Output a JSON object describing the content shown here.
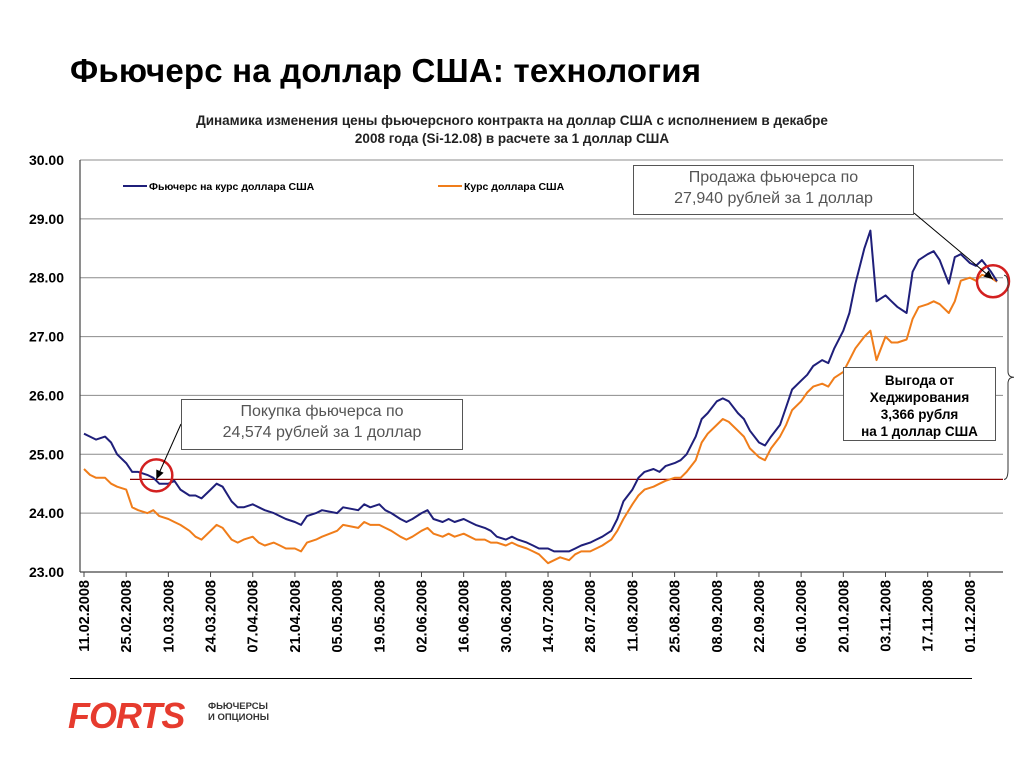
{
  "slide": {
    "title": "Фьючерс на доллар США: технология"
  },
  "chart_data": {
    "type": "line",
    "title": "Динамика изменения цены фьючерсного контракта на доллар США  с исполнением в декабре 2008 года (Si-12.08) в расчете за 1 доллар США",
    "title_lines": [
      "Динамика изменения цены фьючерсного контракта на доллар США  с исполнением в декабре",
      "2008 года (Si-12.08) в расчете за 1 доллар США"
    ],
    "xlabel": "",
    "ylabel": "",
    "ylim": [
      23.0,
      30.0
    ],
    "y_ticks": [
      "23.00",
      "24.00",
      "25.00",
      "26.00",
      "27.00",
      "28.00",
      "29.00",
      "30.00"
    ],
    "x_ticks": [
      "11.02.2008",
      "25.02.2008",
      "10.03.2008",
      "24.03.2008",
      "07.04.2008",
      "21.04.2008",
      "05.05.2008",
      "19.05.2008",
      "02.06.2008",
      "16.06.2008",
      "30.06.2008",
      "14.07.2008",
      "28.07.2008",
      "11.08.2008",
      "25.08.2008",
      "08.09.2008",
      "22.09.2008",
      "06.10.2008",
      "20.10.2008",
      "03.11.2008",
      "17.11.2008",
      "01.12.2008"
    ],
    "grid": true,
    "legend": "top",
    "reference_line": {
      "value": 24.574,
      "color": "#8b0000"
    },
    "series": [
      {
        "name": "Фьючерс на курс доллара США",
        "color": "#1f1f7a",
        "points": [
          [
            "11.02.2008",
            25.35
          ],
          [
            "13.02.2008",
            25.3
          ],
          [
            "15.02.2008",
            25.25
          ],
          [
            "18.02.2008",
            25.3
          ],
          [
            "20.02.2008",
            25.2
          ],
          [
            "22.02.2008",
            25.0
          ],
          [
            "25.02.2008",
            24.85
          ],
          [
            "27.02.2008",
            24.7
          ],
          [
            "29.02.2008",
            24.7
          ],
          [
            "03.03.2008",
            24.65
          ],
          [
            "05.03.2008",
            24.6
          ],
          [
            "07.03.2008",
            24.5
          ],
          [
            "10.03.2008",
            24.5
          ],
          [
            "12.03.2008",
            24.55
          ],
          [
            "14.03.2008",
            24.4
          ],
          [
            "17.03.2008",
            24.3
          ],
          [
            "19.03.2008",
            24.3
          ],
          [
            "21.03.2008",
            24.25
          ],
          [
            "24.03.2008",
            24.4
          ],
          [
            "26.03.2008",
            24.5
          ],
          [
            "28.03.2008",
            24.45
          ],
          [
            "31.03.2008",
            24.2
          ],
          [
            "02.04.2008",
            24.1
          ],
          [
            "04.04.2008",
            24.1
          ],
          [
            "07.04.2008",
            24.15
          ],
          [
            "09.04.2008",
            24.1
          ],
          [
            "11.04.2008",
            24.05
          ],
          [
            "14.04.2008",
            24.0
          ],
          [
            "16.04.2008",
            23.95
          ],
          [
            "18.04.2008",
            23.9
          ],
          [
            "21.04.2008",
            23.85
          ],
          [
            "23.04.2008",
            23.8
          ],
          [
            "25.04.2008",
            23.95
          ],
          [
            "28.04.2008",
            24.0
          ],
          [
            "30.04.2008",
            24.05
          ],
          [
            "05.05.2008",
            24.0
          ],
          [
            "07.05.2008",
            24.1
          ],
          [
            "12.05.2008",
            24.05
          ],
          [
            "14.05.2008",
            24.15
          ],
          [
            "16.05.2008",
            24.1
          ],
          [
            "19.05.2008",
            24.15
          ],
          [
            "21.05.2008",
            24.05
          ],
          [
            "23.05.2008",
            24.0
          ],
          [
            "26.05.2008",
            23.9
          ],
          [
            "28.05.2008",
            23.85
          ],
          [
            "30.05.2008",
            23.9
          ],
          [
            "02.06.2008",
            24.0
          ],
          [
            "04.06.2008",
            24.05
          ],
          [
            "06.06.2008",
            23.9
          ],
          [
            "09.06.2008",
            23.85
          ],
          [
            "11.06.2008",
            23.9
          ],
          [
            "13.06.2008",
            23.85
          ],
          [
            "16.06.2008",
            23.9
          ],
          [
            "18.06.2008",
            23.85
          ],
          [
            "20.06.2008",
            23.8
          ],
          [
            "23.06.2008",
            23.75
          ],
          [
            "25.06.2008",
            23.7
          ],
          [
            "27.06.2008",
            23.6
          ],
          [
            "30.06.2008",
            23.55
          ],
          [
            "02.07.2008",
            23.6
          ],
          [
            "04.07.2008",
            23.55
          ],
          [
            "07.07.2008",
            23.5
          ],
          [
            "09.07.2008",
            23.45
          ],
          [
            "11.07.2008",
            23.4
          ],
          [
            "14.07.2008",
            23.4
          ],
          [
            "16.07.2008",
            23.35
          ],
          [
            "18.07.2008",
            23.35
          ],
          [
            "21.07.2008",
            23.35
          ],
          [
            "23.07.2008",
            23.4
          ],
          [
            "25.07.2008",
            23.45
          ],
          [
            "28.07.2008",
            23.5
          ],
          [
            "30.07.2008",
            23.55
          ],
          [
            "01.08.2008",
            23.6
          ],
          [
            "04.08.2008",
            23.7
          ],
          [
            "06.08.2008",
            23.9
          ],
          [
            "08.08.2008",
            24.2
          ],
          [
            "11.08.2008",
            24.4
          ],
          [
            "13.08.2008",
            24.6
          ],
          [
            "15.08.2008",
            24.7
          ],
          [
            "18.08.2008",
            24.75
          ],
          [
            "20.08.2008",
            24.7
          ],
          [
            "22.08.2008",
            24.8
          ],
          [
            "25.08.2008",
            24.85
          ],
          [
            "27.08.2008",
            24.9
          ],
          [
            "29.08.2008",
            25.0
          ],
          [
            "01.09.2008",
            25.3
          ],
          [
            "03.09.2008",
            25.6
          ],
          [
            "05.09.2008",
            25.7
          ],
          [
            "08.09.2008",
            25.9
          ],
          [
            "10.09.2008",
            25.95
          ],
          [
            "12.09.2008",
            25.9
          ],
          [
            "15.09.2008",
            25.7
          ],
          [
            "17.09.2008",
            25.6
          ],
          [
            "19.09.2008",
            25.4
          ],
          [
            "22.09.2008",
            25.2
          ],
          [
            "24.09.2008",
            25.15
          ],
          [
            "26.09.2008",
            25.3
          ],
          [
            "29.09.2008",
            25.5
          ],
          [
            "01.10.2008",
            25.8
          ],
          [
            "03.10.2008",
            26.1
          ],
          [
            "06.10.2008",
            26.25
          ],
          [
            "08.10.2008",
            26.35
          ],
          [
            "10.10.2008",
            26.5
          ],
          [
            "13.10.2008",
            26.6
          ],
          [
            "15.10.2008",
            26.55
          ],
          [
            "17.10.2008",
            26.8
          ],
          [
            "20.10.2008",
            27.1
          ],
          [
            "22.10.2008",
            27.4
          ],
          [
            "24.10.2008",
            27.9
          ],
          [
            "27.10.2008",
            28.5
          ],
          [
            "29.10.2008",
            28.8
          ],
          [
            "31.10.2008",
            27.6
          ],
          [
            "03.11.2008",
            27.7
          ],
          [
            "05.11.2008",
            27.6
          ],
          [
            "07.11.2008",
            27.5
          ],
          [
            "10.11.2008",
            27.4
          ],
          [
            "12.11.2008",
            28.1
          ],
          [
            "14.11.2008",
            28.3
          ],
          [
            "17.11.2008",
            28.4
          ],
          [
            "19.11.2008",
            28.45
          ],
          [
            "21.11.2008",
            28.3
          ],
          [
            "24.11.2008",
            27.9
          ],
          [
            "26.11.2008",
            28.35
          ],
          [
            "28.11.2008",
            28.4
          ],
          [
            "01.12.2008",
            28.25
          ],
          [
            "03.12.2008",
            28.2
          ],
          [
            "05.12.2008",
            28.3
          ],
          [
            "08.12.2008",
            28.1
          ],
          [
            "10.12.2008",
            27.94
          ]
        ]
      },
      {
        "name": "Курс доллара США",
        "color": "#f07d1a",
        "points": [
          [
            "11.02.2008",
            24.75
          ],
          [
            "13.02.2008",
            24.65
          ],
          [
            "15.02.2008",
            24.6
          ],
          [
            "18.02.2008",
            24.6
          ],
          [
            "20.02.2008",
            24.5
          ],
          [
            "22.02.2008",
            24.45
          ],
          [
            "25.02.2008",
            24.4
          ],
          [
            "27.02.2008",
            24.1
          ],
          [
            "29.02.2008",
            24.05
          ],
          [
            "03.03.2008",
            24.0
          ],
          [
            "05.03.2008",
            24.05
          ],
          [
            "07.03.2008",
            23.95
          ],
          [
            "10.03.2008",
            23.9
          ],
          [
            "12.03.2008",
            23.85
          ],
          [
            "14.03.2008",
            23.8
          ],
          [
            "17.03.2008",
            23.7
          ],
          [
            "19.03.2008",
            23.6
          ],
          [
            "21.03.2008",
            23.55
          ],
          [
            "24.03.2008",
            23.7
          ],
          [
            "26.03.2008",
            23.8
          ],
          [
            "28.03.2008",
            23.75
          ],
          [
            "31.03.2008",
            23.55
          ],
          [
            "02.04.2008",
            23.5
          ],
          [
            "04.04.2008",
            23.55
          ],
          [
            "07.04.2008",
            23.6
          ],
          [
            "09.04.2008",
            23.5
          ],
          [
            "11.04.2008",
            23.45
          ],
          [
            "14.04.2008",
            23.5
          ],
          [
            "16.04.2008",
            23.45
          ],
          [
            "18.04.2008",
            23.4
          ],
          [
            "21.04.2008",
            23.4
          ],
          [
            "23.04.2008",
            23.35
          ],
          [
            "25.04.2008",
            23.5
          ],
          [
            "28.04.2008",
            23.55
          ],
          [
            "30.04.2008",
            23.6
          ],
          [
            "05.05.2008",
            23.7
          ],
          [
            "07.05.2008",
            23.8
          ],
          [
            "12.05.2008",
            23.75
          ],
          [
            "14.05.2008",
            23.85
          ],
          [
            "16.05.2008",
            23.8
          ],
          [
            "19.05.2008",
            23.8
          ],
          [
            "21.05.2008",
            23.75
          ],
          [
            "23.05.2008",
            23.7
          ],
          [
            "26.05.2008",
            23.6
          ],
          [
            "28.05.2008",
            23.55
          ],
          [
            "30.05.2008",
            23.6
          ],
          [
            "02.06.2008",
            23.7
          ],
          [
            "04.06.2008",
            23.75
          ],
          [
            "06.06.2008",
            23.65
          ],
          [
            "09.06.2008",
            23.6
          ],
          [
            "11.06.2008",
            23.65
          ],
          [
            "13.06.2008",
            23.6
          ],
          [
            "16.06.2008",
            23.65
          ],
          [
            "18.06.2008",
            23.6
          ],
          [
            "20.06.2008",
            23.55
          ],
          [
            "23.06.2008",
            23.55
          ],
          [
            "25.06.2008",
            23.5
          ],
          [
            "27.06.2008",
            23.5
          ],
          [
            "30.06.2008",
            23.45
          ],
          [
            "02.07.2008",
            23.5
          ],
          [
            "04.07.2008",
            23.45
          ],
          [
            "07.07.2008",
            23.4
          ],
          [
            "09.07.2008",
            23.35
          ],
          [
            "11.07.2008",
            23.3
          ],
          [
            "14.07.2008",
            23.15
          ],
          [
            "16.07.2008",
            23.2
          ],
          [
            "18.07.2008",
            23.25
          ],
          [
            "21.07.2008",
            23.2
          ],
          [
            "23.07.2008",
            23.3
          ],
          [
            "25.07.2008",
            23.35
          ],
          [
            "28.07.2008",
            23.35
          ],
          [
            "30.07.2008",
            23.4
          ],
          [
            "01.08.2008",
            23.45
          ],
          [
            "04.08.2008",
            23.55
          ],
          [
            "06.08.2008",
            23.7
          ],
          [
            "08.08.2008",
            23.9
          ],
          [
            "11.08.2008",
            24.15
          ],
          [
            "13.08.2008",
            24.3
          ],
          [
            "15.08.2008",
            24.4
          ],
          [
            "18.08.2008",
            24.45
          ],
          [
            "20.08.2008",
            24.5
          ],
          [
            "22.08.2008",
            24.55
          ],
          [
            "25.08.2008",
            24.6
          ],
          [
            "27.08.2008",
            24.6
          ],
          [
            "29.08.2008",
            24.7
          ],
          [
            "01.09.2008",
            24.9
          ],
          [
            "03.09.2008",
            25.2
          ],
          [
            "05.09.2008",
            25.35
          ],
          [
            "08.09.2008",
            25.5
          ],
          [
            "10.09.2008",
            25.6
          ],
          [
            "12.09.2008",
            25.55
          ],
          [
            "15.09.2008",
            25.4
          ],
          [
            "17.09.2008",
            25.3
          ],
          [
            "19.09.2008",
            25.1
          ],
          [
            "22.09.2008",
            24.95
          ],
          [
            "24.09.2008",
            24.9
          ],
          [
            "26.09.2008",
            25.1
          ],
          [
            "29.09.2008",
            25.3
          ],
          [
            "01.10.2008",
            25.5
          ],
          [
            "03.10.2008",
            25.75
          ],
          [
            "06.10.2008",
            25.9
          ],
          [
            "08.10.2008",
            26.05
          ],
          [
            "10.10.2008",
            26.15
          ],
          [
            "13.10.2008",
            26.2
          ],
          [
            "15.10.2008",
            26.15
          ],
          [
            "17.10.2008",
            26.3
          ],
          [
            "20.10.2008",
            26.4
          ],
          [
            "22.10.2008",
            26.6
          ],
          [
            "24.10.2008",
            26.8
          ],
          [
            "27.10.2008",
            27.0
          ],
          [
            "29.10.2008",
            27.1
          ],
          [
            "31.10.2008",
            26.6
          ],
          [
            "03.11.2008",
            27.0
          ],
          [
            "05.11.2008",
            26.9
          ],
          [
            "07.11.2008",
            26.9
          ],
          [
            "10.11.2008",
            26.95
          ],
          [
            "12.11.2008",
            27.3
          ],
          [
            "14.11.2008",
            27.5
          ],
          [
            "17.11.2008",
            27.55
          ],
          [
            "19.11.2008",
            27.6
          ],
          [
            "21.11.2008",
            27.55
          ],
          [
            "24.11.2008",
            27.4
          ],
          [
            "26.11.2008",
            27.6
          ],
          [
            "28.11.2008",
            27.95
          ],
          [
            "01.12.2008",
            28.0
          ],
          [
            "03.12.2008",
            27.95
          ],
          [
            "05.12.2008",
            28.05
          ],
          [
            "08.12.2008",
            28.0
          ],
          [
            "10.12.2008",
            27.93
          ]
        ]
      }
    ],
    "annotations": {
      "sell": {
        "lines": [
          "Продажа фьючерса по",
          "27,940 рублей за 1 доллар"
        ],
        "target": [
          "10.12.2008",
          27.94
        ]
      },
      "buy": {
        "lines": [
          "Покупка фьючерса по",
          "24,574 рублей за 1 доллар"
        ],
        "target": [
          "05.03.2008",
          24.574
        ]
      },
      "benefit": {
        "lines": [
          "Выгода от",
          "Хеджирования",
          "3,366 рубля",
          "на 1 доллар США"
        ]
      }
    },
    "marker_color": "#d32020"
  },
  "footer": {
    "logo_text": "FORTS",
    "logo_sub_1": "ФЬЮЧЕРСЫ",
    "logo_sub_2": "И ОПЦИОНЫ",
    "logo_color": "#e63b2e"
  }
}
